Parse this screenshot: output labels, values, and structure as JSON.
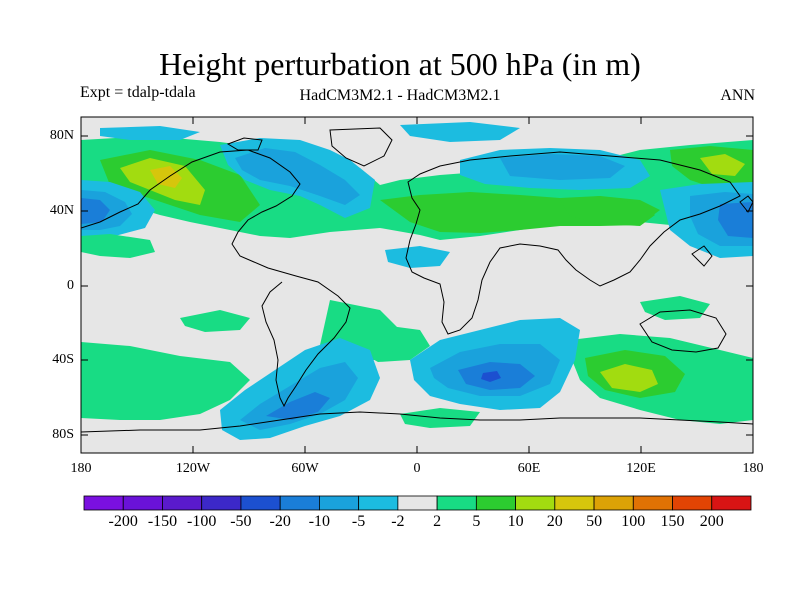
{
  "title": "Height perturbation at 500 hPa (in m)",
  "subtitle_left": "Expt = tdalp-tdala",
  "subtitle_center": "HadCM3M2.1 - HadCM3M2.1",
  "subtitle_right": "ANN",
  "lat_labels": [
    "80N",
    "40N",
    "0",
    "40S",
    "80S"
  ],
  "lon_labels": [
    "180",
    "120W",
    "60W",
    "0",
    "60E",
    "120E",
    "180"
  ],
  "colorbar": {
    "labels": [
      "-200",
      "-150",
      "-100",
      "-50",
      "-20",
      "-10",
      "-5",
      "-2",
      "2",
      "5",
      "10",
      "20",
      "50",
      "100",
      "150",
      "200"
    ],
    "colors": [
      "#7a10e0",
      "#6a12d8",
      "#5a1acc",
      "#3c28c8",
      "#1c50d0",
      "#1a7ed8",
      "#1aa2dc",
      "#1cbce0",
      "#e6e6e6",
      "#18dc84",
      "#2ccc30",
      "#a2dc10",
      "#d6c60c",
      "#dca206",
      "#e07204",
      "#e24404",
      "#d81414"
    ]
  },
  "map_colors": {
    "background": "#e6e6e6",
    "neg_2": "#1cbce0",
    "neg_5": "#1aa2dc",
    "neg_10": "#1a7ed8",
    "neg_20": "#1c50d0",
    "pos_2": "#18dc84",
    "pos_5": "#2ccc30",
    "pos_10": "#a2dc10",
    "pos_20": "#d6c60c"
  }
}
